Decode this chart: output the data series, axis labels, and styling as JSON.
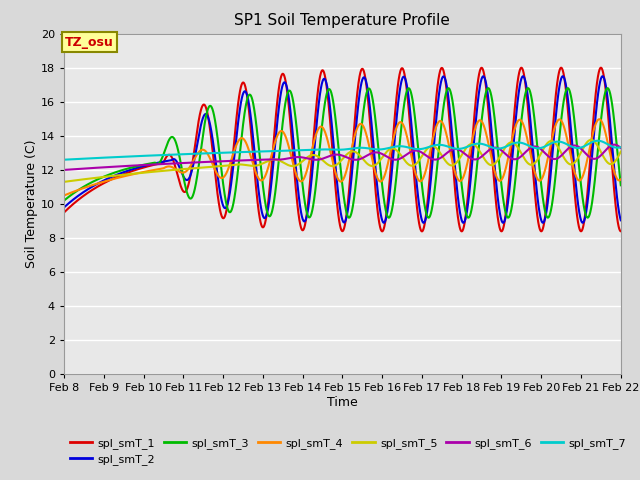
{
  "title": "SP1 Soil Temperature Profile",
  "xlabel": "Time",
  "ylabel": "Soil Temperature (C)",
  "ylim": [
    0,
    20
  ],
  "xlim": [
    0,
    336
  ],
  "bg_color": "#d9d9d9",
  "plot_bg": "#e8e8e8",
  "series_colors": {
    "spl_smT_1": "#dd0000",
    "spl_smT_2": "#0000dd",
    "spl_smT_3": "#00bb00",
    "spl_smT_4": "#ff8800",
    "spl_smT_5": "#cccc00",
    "spl_smT_6": "#aa00aa",
    "spl_smT_7": "#00cccc"
  },
  "xtick_labels": [
    "Feb 8",
    "Feb 9",
    "Feb 10",
    "Feb 11",
    "Feb 12",
    "Feb 13",
    "Feb 14",
    "Feb 15",
    "Feb 16",
    "Feb 17",
    "Feb 18",
    "Feb 19",
    "Feb 20",
    "Feb 21",
    "Feb 22"
  ],
  "xtick_positions": [
    0,
    24,
    48,
    72,
    96,
    120,
    144,
    168,
    192,
    216,
    240,
    264,
    288,
    312,
    336
  ],
  "annotation_text": "TZ_osu",
  "annotation_color": "#cc0000",
  "annotation_bg": "#ffff99",
  "annotation_border": "#888800"
}
